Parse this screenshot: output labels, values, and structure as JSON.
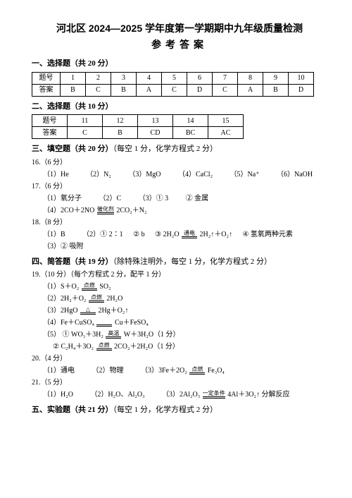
{
  "header": {
    "title": "河北区 2024—2025 学年度第一学期期中九年级质量检测",
    "subtitle": "参考答案"
  },
  "section1": {
    "heading": "一、选择题（共 20 分）",
    "row_label": "题号",
    "ans_label": "答案",
    "nums": [
      "1",
      "2",
      "3",
      "4",
      "5",
      "6",
      "7",
      "8",
      "9",
      "10"
    ],
    "answers": [
      "B",
      "C",
      "B",
      "A",
      "C",
      "D",
      "C",
      "A",
      "B",
      "D"
    ]
  },
  "section2": {
    "heading": "二、选择题（共 10 分）",
    "row_label": "题号",
    "ans_label": "答案",
    "nums": [
      "11",
      "12",
      "13",
      "14",
      "15"
    ],
    "answers": [
      "C",
      "B",
      "CD",
      "BC",
      "AC"
    ]
  },
  "section3": {
    "heading": "三、填空题（共 20 分）",
    "note": "（每空 1 分，化学方程式 2 分）",
    "q16": {
      "label": "16.（6 分）",
      "p1": "（1）He",
      "p2": "（2）N₂",
      "p3": "（3）MgO",
      "p4": "（4）CaCl₂",
      "p5": "（5）Na⁺",
      "p6": "（6）NaOH"
    },
    "q17": {
      "label": "17.（6 分）",
      "line1_p1": "（1）氧分子",
      "line1_p2": "（2）C",
      "line1_p3": "（3）① 3",
      "line1_p4": "② 金属",
      "line2_pre": "（4）2CO＋2NO",
      "line2_cond": "催化剂",
      "line2_post": "2CO₂＋N₂"
    },
    "q18": {
      "label": "18.（8 分）",
      "line1_p1": "（1）B",
      "line1_p2": "（2）① 2∶1",
      "line1_p3": "② b",
      "line1_p4a": "③ 2H₂O",
      "line1_cond": "通电",
      "line1_p4b": "2H₂↑＋O₂↑",
      "line1_p5": "④ 氢氧两种元素",
      "line2": "（3）②    吸附"
    }
  },
  "section4": {
    "heading": "四、简答题（共 19 分）",
    "note": "（除特殊注明外，每空 1 分，化学方程式 2 分）",
    "q19": {
      "label": "19.（10 分）（每个方程式 2 分，配平 1 分）",
      "l1a": "（1）S＋O₂",
      "l1c": "点燃",
      "l1b": "SO₂",
      "l2a": "（2）2H₂＋O₂",
      "l2c": "点燃",
      "l2b": "2H₂O",
      "l3a": "（3）2HgO",
      "l3c": "△",
      "l3b": "2Hg＋O₂↑",
      "l4a": "（4）Fe＋CuSO₄",
      "l4c": "",
      "l4b": "Cu＋FeSO₄",
      "l5a": "（5） ①  WO₃＋3H₂",
      "l5c": "高温",
      "l5b": "W＋3H₂O（1 分）",
      "l6a": "②  C₂H₄＋3O₂",
      "l6c": "点燃",
      "l6b": "2CO₂＋2H₂O（1 分）"
    },
    "q20": {
      "label": "20.（4 分）",
      "p1": "（1）通电",
      "p2": "（2）物理",
      "p3a": "（3）3Fe＋2O₂",
      "p3c": "点燃",
      "p3b": "Fe₃O₄"
    },
    "q21": {
      "label": "21.（5 分）",
      "p1": "（1）H₂O",
      "p2": "（2）H₂O、Al₂O₃",
      "p3a": "（3）2Al₂O₃",
      "p3c": "一定条件",
      "p3b": "4Al＋3O₂↑ 分解反应"
    }
  },
  "section5": {
    "heading": "五、实验题（共 21 分）",
    "note": "（每空 1 分，化学方程式 2 分）"
  }
}
